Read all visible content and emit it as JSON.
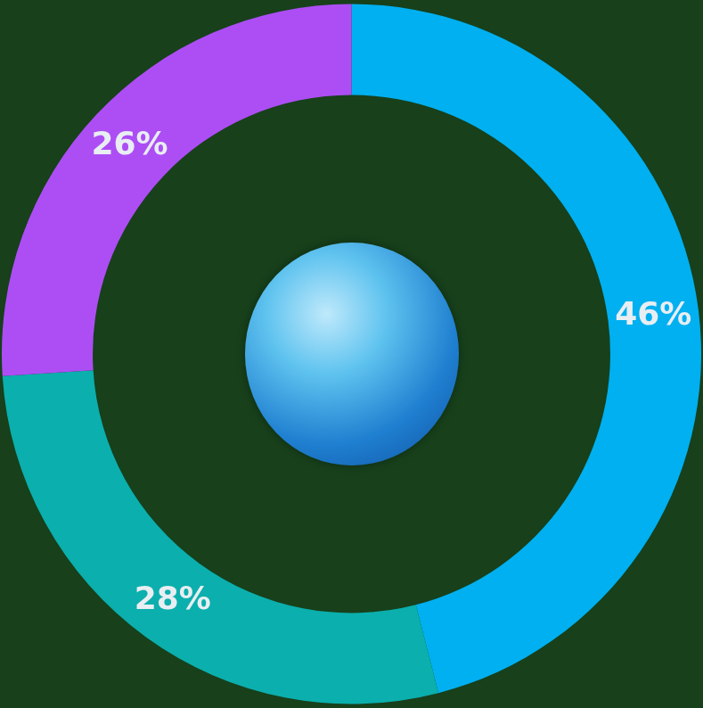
{
  "chart_data": {
    "type": "doughnut",
    "values": [
      46,
      28,
      26
    ],
    "value_labels": [
      "46%",
      "28%",
      "26%"
    ],
    "colors": [
      "#00b0f0",
      "#0bafad",
      "#ad4ef5"
    ],
    "data_labels": true
  }
}
